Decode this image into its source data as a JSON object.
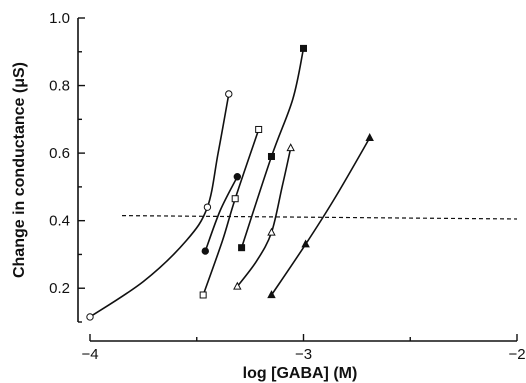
{
  "chart_data": {
    "type": "line",
    "title": "",
    "xlabel": "log [GABA] (M)",
    "ylabel": "Change in conductance (μS)",
    "xlim": [
      -4,
      -2
    ],
    "ylim": [
      0.1,
      1.0
    ],
    "x_ticks": [
      {
        "value": -4,
        "label": "−4"
      },
      {
        "value": -3,
        "label": "−3"
      },
      {
        "value": -2,
        "label": "−2"
      }
    ],
    "x_minor_ticks": [
      -3.5,
      -2.5
    ],
    "y_ticks": [
      {
        "value": 0.2,
        "label": "0.2"
      },
      {
        "value": 0.4,
        "label": "0.4"
      },
      {
        "value": 0.6,
        "label": "0.6"
      },
      {
        "value": 0.8,
        "label": "0.8"
      },
      {
        "value": 1.0,
        "label": "1.0"
      }
    ],
    "y_minor_ticks": [
      0.1,
      0.3,
      0.5,
      0.7,
      0.9
    ],
    "grid": false,
    "legend": "none",
    "reference_line": {
      "style": "dashed",
      "y_start": 0.415,
      "y_end": 0.405
    },
    "series": [
      {
        "marker": "open-circle",
        "x": [
          -4.0,
          -3.45,
          -3.35
        ],
        "y": [
          0.115,
          0.44,
          0.775
        ],
        "curve": [
          [
            -4.0,
            0.115
          ],
          [
            -3.75,
            0.22
          ],
          [
            -3.55,
            0.34
          ],
          [
            -3.45,
            0.44
          ],
          [
            -3.4,
            0.6
          ],
          [
            -3.35,
            0.775
          ]
        ]
      },
      {
        "marker": "filled-circle",
        "x": [
          -3.46,
          -3.31
        ],
        "y": [
          0.31,
          0.53
        ],
        "curve": [
          [
            -3.46,
            0.31
          ],
          [
            -3.39,
            0.43
          ],
          [
            -3.31,
            0.53
          ]
        ]
      },
      {
        "marker": "open-square",
        "x": [
          -3.47,
          -3.32,
          -3.21
        ],
        "y": [
          0.18,
          0.465,
          0.67
        ],
        "curve": [
          [
            -3.47,
            0.18
          ],
          [
            -3.38,
            0.34
          ],
          [
            -3.32,
            0.465
          ],
          [
            -3.21,
            0.67
          ]
        ]
      },
      {
        "marker": "filled-square",
        "x": [
          -3.29,
          -3.15,
          -3.0
        ],
        "y": [
          0.32,
          0.59,
          0.91
        ],
        "curve": [
          [
            -3.29,
            0.32
          ],
          [
            -3.15,
            0.59
          ],
          [
            -3.05,
            0.76
          ],
          [
            -3.0,
            0.91
          ]
        ]
      },
      {
        "marker": "open-triangle",
        "x": [
          -3.31,
          -3.15,
          -3.06
        ],
        "y": [
          0.205,
          0.365,
          0.615
        ],
        "curve": [
          [
            -3.31,
            0.205
          ],
          [
            -3.22,
            0.28
          ],
          [
            -3.15,
            0.365
          ],
          [
            -3.1,
            0.5
          ],
          [
            -3.06,
            0.615
          ]
        ]
      },
      {
        "marker": "filled-triangle",
        "x": [
          -3.15,
          -2.99,
          -2.69
        ],
        "y": [
          0.18,
          0.33,
          0.645
        ],
        "curve": [
          [
            -3.15,
            0.18
          ],
          [
            -2.99,
            0.33
          ],
          [
            -2.85,
            0.47
          ],
          [
            -2.69,
            0.645
          ]
        ]
      }
    ]
  }
}
